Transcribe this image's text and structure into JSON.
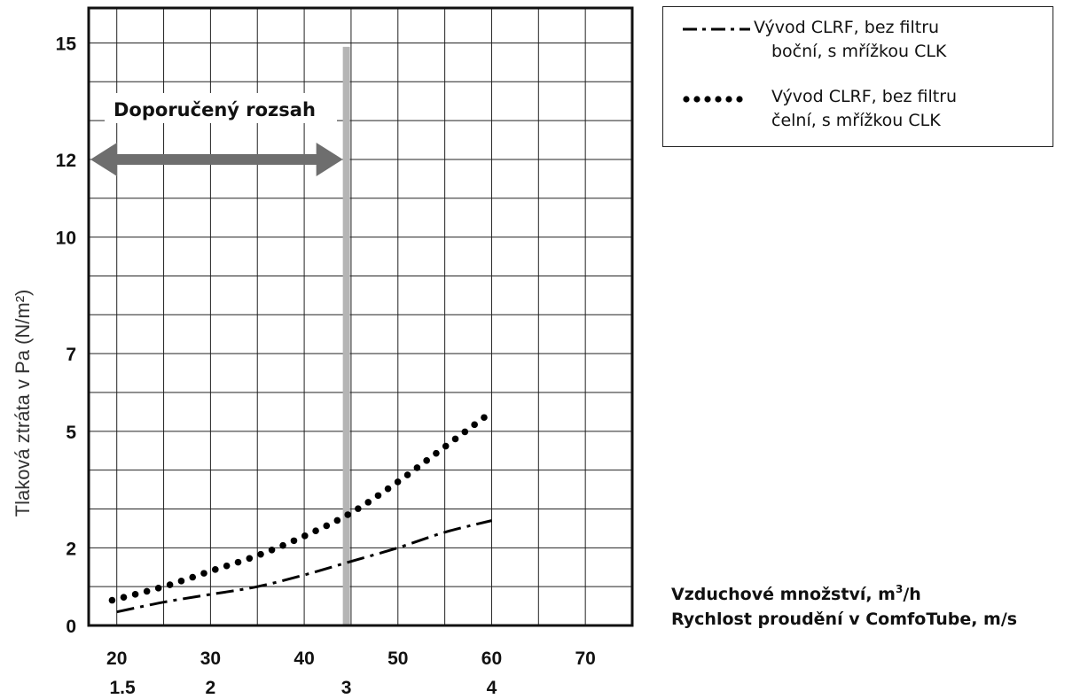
{
  "chart_data": {
    "type": "line",
    "ylabel": "Tlaková ztráta v Pa (N/m²)",
    "xlabel_line1_prefix": "Vzduchové množství, m",
    "xlabel_line1_sup": "3",
    "xlabel_line1_suffix": "/h",
    "xlabel_line2": "Rychlost proudění v ComfoTube, m/s",
    "x_ticks": [
      20,
      30,
      40,
      50,
      60,
      70
    ],
    "x_ticks_secondary": [
      {
        "value": 20.6,
        "label": "1.5"
      },
      {
        "value": 30,
        "label": "2"
      },
      {
        "value": 44.5,
        "label": "3"
      },
      {
        "value": 60,
        "label": "4"
      }
    ],
    "y_ticks": [
      0,
      2,
      5,
      7,
      10,
      12,
      15
    ],
    "xlim": [
      17,
      75
    ],
    "ylim": [
      0,
      15.9
    ],
    "grid": true,
    "legend_position": "top-right, outside plot",
    "recommended_range": {
      "label": "Doporučený rozsah",
      "x_from": 17,
      "x_to": 44.5
    },
    "marker_line_x": 44.5,
    "series": [
      {
        "name_line1": "Vývod CLRF, bez filtru",
        "name_line2": "boční, s mřížkou CLK",
        "style": "dash-dot",
        "x": [
          20,
          25,
          30,
          35,
          40,
          45,
          50,
          55,
          60
        ],
        "y": [
          0.35,
          0.6,
          0.8,
          1.0,
          1.3,
          1.65,
          2.0,
          2.4,
          2.7
        ]
      },
      {
        "name_line1": "Vývod CLRF, bez filtru",
        "name_line2": "čelní, s mřížkou CLK",
        "style": "dotted",
        "x": [
          19.5,
          25,
          30,
          35,
          40,
          45,
          50,
          55,
          60
        ],
        "y": [
          0.65,
          1.0,
          1.4,
          1.8,
          2.3,
          2.9,
          3.7,
          4.6,
          5.5
        ]
      }
    ]
  },
  "colors": {
    "range_arrow": "#6e6e6e",
    "marker_line": "#b5b5b5",
    "grid": "#222222",
    "series": "#000000"
  }
}
